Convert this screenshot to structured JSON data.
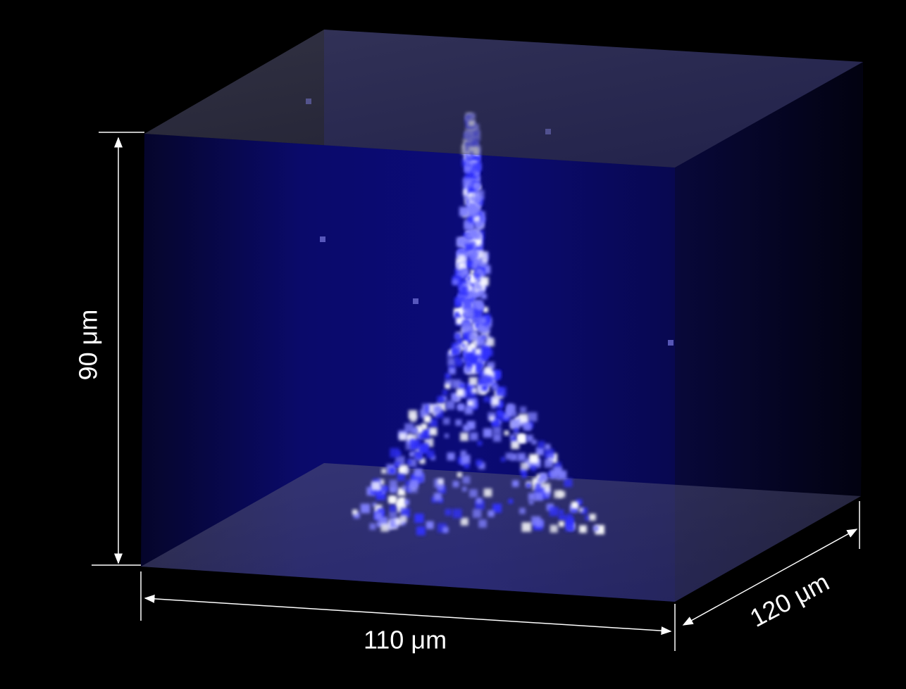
{
  "labels": {
    "height": "90 μm",
    "width": "110 μm",
    "depth": "120 μm"
  }
}
